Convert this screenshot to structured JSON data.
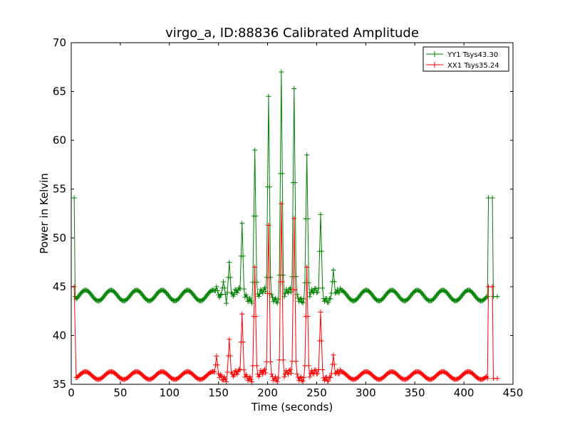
{
  "chart_data": {
    "type": "line",
    "title": "virgo_a, ID:88836 Calibrated Amplitude",
    "xlabel": "Time (seconds)",
    "ylabel": "Power in Kelvin",
    "xlim": [
      0,
      450
    ],
    "ylim": [
      35,
      70
    ],
    "xticks": [
      0,
      50,
      100,
      150,
      200,
      250,
      300,
      350,
      400,
      450
    ],
    "yticks": [
      35,
      40,
      45,
      50,
      55,
      60,
      65,
      70
    ],
    "grid": false,
    "legend_position": "top-right",
    "series": [
      {
        "name": "YY1 Tsys43.30",
        "color": "#008000",
        "marker": "+",
        "baseline": 44.1,
        "ripple_amplitude": 0.55,
        "ripple_period_s": 26,
        "start": [
          [
            0,
            54.1
          ],
          [
            3,
            54.1
          ],
          [
            4,
            44.0
          ]
        ],
        "spikes": [
          [
            148,
            45.0
          ],
          [
            155,
            45.5
          ],
          [
            161,
            47.5
          ],
          [
            174,
            51.5
          ],
          [
            187,
            59.0
          ],
          [
            201,
            64.5
          ],
          [
            214,
            67.0
          ],
          [
            227,
            65.3
          ],
          [
            240,
            58.5
          ],
          [
            254,
            52.4
          ],
          [
            267,
            46.7
          ]
        ],
        "end": [
          [
            424,
            44.0
          ],
          [
            425,
            54.1
          ],
          [
            429,
            54.1
          ],
          [
            430,
            44.0
          ],
          [
            434,
            44.0
          ]
        ]
      },
      {
        "name": "XX1 Tsys35.24",
        "color": "#ff0000",
        "marker": "+",
        "baseline": 35.9,
        "ripple_amplitude": 0.4,
        "ripple_period_s": 26,
        "start": [
          [
            0,
            45.0
          ],
          [
            3,
            45.0
          ],
          [
            5,
            35.7
          ]
        ],
        "spikes": [
          [
            148,
            37.9
          ],
          [
            161,
            39.6
          ],
          [
            174,
            42.2
          ],
          [
            187,
            47.0
          ],
          [
            201,
            51.3
          ],
          [
            214,
            53.5
          ],
          [
            227,
            52.0
          ],
          [
            240,
            47.0
          ],
          [
            254,
            42.4
          ],
          [
            267,
            38.0
          ]
        ],
        "end": [
          [
            424,
            35.6
          ],
          [
            425,
            45.0
          ],
          [
            429,
            45.0
          ],
          [
            430,
            35.6
          ],
          [
            434,
            35.6
          ]
        ]
      }
    ]
  }
}
